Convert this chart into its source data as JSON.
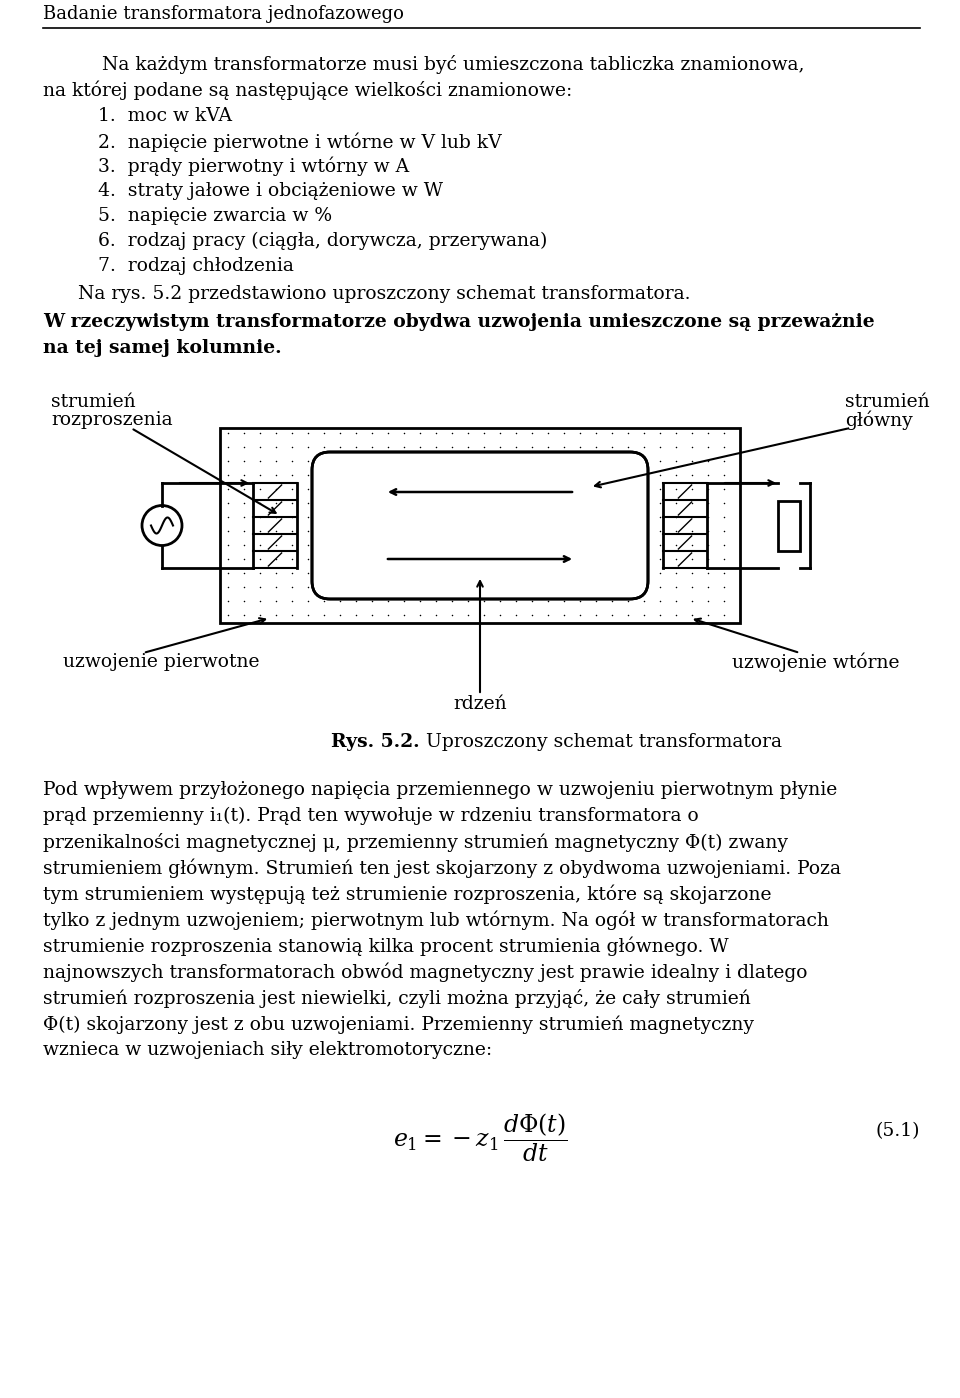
{
  "title_text": "Badanie transformatora jednofazowego",
  "bg_color": "#ffffff",
  "text_color": "#000000",
  "paragraph1_line1": "    Na każdym transformatorze musi być umieszczona tabliczka znamionowa,",
  "paragraph1_line2": "na której podane są następujące wielkości znamionowe:",
  "list_items": [
    "1.  moc w kVA",
    "2.  napięcie pierwotne i wtórne w V lub kV",
    "3.  prądy pierwotny i wtórny w A",
    "4.  straty jałowe i obciążeniowe w W",
    "5.  napięcie zwarcia w %",
    "6.  rodzaj pracy (ciągła, dorywcza, przerywana)",
    "7.  rodzaj chłodzenia"
  ],
  "paragraph2": "    Na rys. 5.2 przedstawiono uproszczony schemat transformatora.",
  "paragraph3_line1": "W rzeczywistym transformatorze obydwa uzwojenia umieszczone są przeważnie",
  "paragraph3_line2": "na tej samej kolumnie.",
  "diagram_caption_bold": "Rys. 5.2.",
  "diagram_caption_normal": " Uproszczony schemat transformatora",
  "label_strumien_rozproszenia_l1": "strumień",
  "label_strumien_rozproszenia_l2": "rozproszenia",
  "label_strumien_glowny_l1": "strumień",
  "label_strumien_glowny_l2": "główny",
  "label_uzwojenie_pierwotne": "uzwojenie pierwotne",
  "label_uzwojenie_wtorne": "uzwojenie wtórne",
  "label_rdzen": "rdzeń",
  "para4_lines": [
    "    Pod wpływem przyłożonego napięcia przemiennego w uzwojeniu",
    "pierwotnym płynie prąd przemienny i₁(t). Prąd ten wywołuje w rdzeniu",
    "transformatora o przenikaln ości magnetycznej μ, przemienny strumień",
    "magnetyczny Φ(t) zwany strumieniem głównym. Strumień ten jest skojarzony",
    "z obydwoma uzwojeniami. Poza tym strumieniem występują też strumienie",
    "rozproszenia, które są skojarzone tylko z jednym uzwojeniem; pierwotnym lub",
    "wtórnym. Na ogół w transformatorach strumienie rozproszenia stanowią kilka",
    "procent strumienia głównego. W najnowszych transformatorach obwód",
    "magnetyczny jest prawie idealny i dlatego strumień rozproszenia jest niewielki,",
    "czyli można przyjąć, że cały strumień Φ(t) skojarzony jest z obu uzwojeniami.",
    "Przemienny strumień magnetyczny wznieca w uzwojeniach siły",
    "elektromotoryczne:"
  ],
  "formula_number": "(5.1)"
}
